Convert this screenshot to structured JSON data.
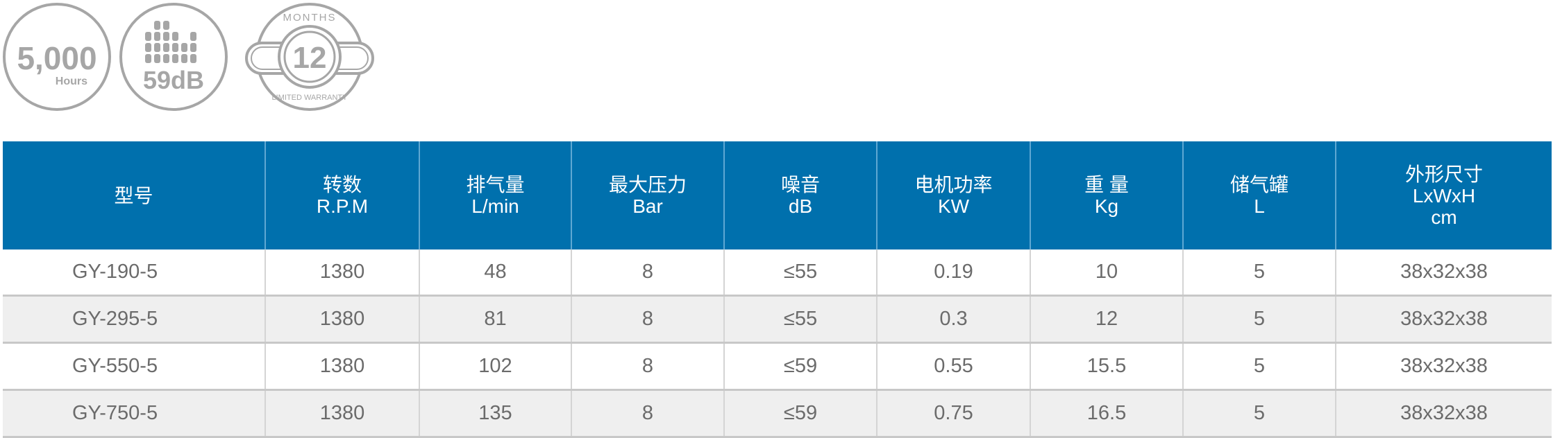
{
  "badges": {
    "hours": {
      "value": "5,000",
      "unit": "Hours"
    },
    "noise": {
      "value": "59dB"
    },
    "warranty": {
      "top": "MONTHS",
      "value": "12",
      "bottom": "LIMITED WARRANTY"
    },
    "color": "#a6a6a6"
  },
  "table": {
    "header_color": "#0070ad",
    "columns": [
      {
        "label": "型号",
        "unit": ""
      },
      {
        "label": "转数",
        "unit": "R.P.M"
      },
      {
        "label": "排气量",
        "unit": "L/min"
      },
      {
        "label": "最大压力",
        "unit": "Bar"
      },
      {
        "label": "噪音",
        "unit": "dB"
      },
      {
        "label": "电机功率",
        "unit": "KW"
      },
      {
        "label": "重 量",
        "unit": "Kg"
      },
      {
        "label": "储气罐",
        "unit": "L"
      },
      {
        "label": "外形尺寸",
        "unit": "LxWxH",
        "unit2": "cm"
      }
    ],
    "rows": [
      [
        "GY-190-5",
        "1380",
        "48",
        "8",
        "≤55",
        "0.19",
        "10",
        "5",
        "38x32x38"
      ],
      [
        "GY-295-5",
        "1380",
        "81",
        "8",
        "≤55",
        "0.3",
        "12",
        "5",
        "38x32x38"
      ],
      [
        "GY-550-5",
        "1380",
        "102",
        "8",
        "≤59",
        "0.55",
        "15.5",
        "5",
        "38x32x38"
      ],
      [
        "GY-750-5",
        "1380",
        "135",
        "8",
        "≤59",
        "0.75",
        "16.5",
        "5",
        "38x32x38"
      ]
    ]
  }
}
